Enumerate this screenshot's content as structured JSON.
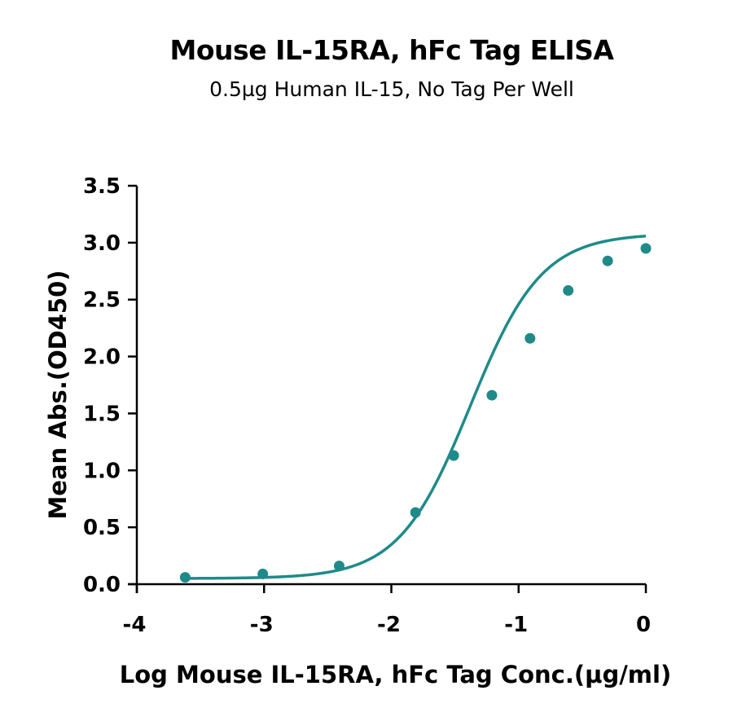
{
  "chart_data": {
    "type": "scatter",
    "title": "Mouse IL-15RA, hFc Tag ELISA",
    "subtitle": "0.5µg Human IL-15, No Tag Per Well",
    "xlabel": "Log Mouse IL-15RA, hFc Tag Conc.(µg/ml)",
    "ylabel": "Mean Abs.(OD450)",
    "xlim": [
      -4,
      0
    ],
    "ylim": [
      0,
      3.5
    ],
    "x_ticks": [
      -4,
      -3,
      -2,
      -1,
      0
    ],
    "x_tick_labels": [
      "-4",
      "-3",
      "-2",
      "-1",
      "0"
    ],
    "y_ticks": [
      0,
      0.5,
      1,
      1.5,
      2,
      2.5,
      3,
      3.5
    ],
    "y_tick_labels": [
      "0.0",
      "0.5",
      "1.0",
      "1.5",
      "2.0",
      "2.5",
      "3.0",
      "3.5"
    ],
    "grid": false,
    "legend": "none",
    "series": [
      {
        "x": [
          -3.62,
          -3.01,
          -2.41,
          -1.81,
          -1.51,
          -1.21,
          -0.91,
          -0.61,
          -0.3,
          0.0
        ],
        "y": [
          0.06,
          0.09,
          0.16,
          0.63,
          1.13,
          1.66,
          2.16,
          2.58,
          2.84,
          2.95
        ],
        "fit": "4-parameter logistic",
        "color": "#1f8a8a"
      }
    ]
  }
}
